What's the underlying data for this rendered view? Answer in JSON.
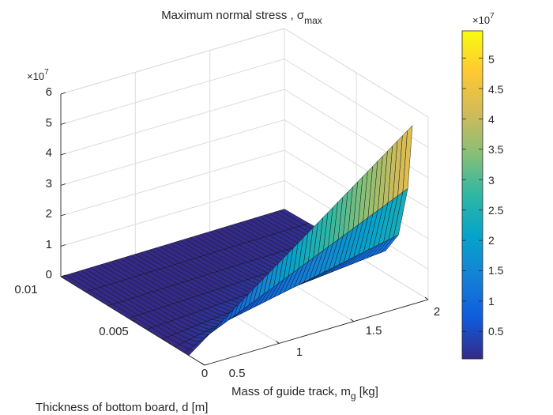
{
  "chart_data": {
    "type": "surface",
    "title_main": "Maximum normal stress , σ",
    "title_sub": "max",
    "xlabel_main": "Mass of guide track, m",
    "xlabel_sub": "g",
    "xlabel_tail": " [kg]",
    "ylabel": "Thickness of bottom board, d [m]",
    "z_exponent_base": "×10",
    "z_exponent_power": "7",
    "xlim": [
      0.5,
      2
    ],
    "ylim": [
      0,
      0.01
    ],
    "zlim": [
      0,
      6
    ],
    "zlim_units": "×10^7",
    "x_ticks": [
      "0.5",
      "1",
      "1.5",
      "2"
    ],
    "y_ticks": [
      "0",
      "0.005",
      "0.01"
    ],
    "z_ticks": [
      "0",
      "1",
      "2",
      "3",
      "4",
      "5",
      "6"
    ],
    "colorbar": {
      "colormap": "parula",
      "limits": [
        0.05,
        5.45
      ],
      "ticks": [
        "0.5",
        "1",
        "1.5",
        "2",
        "2.5",
        "3",
        "3.5",
        "4",
        "4.5",
        "5"
      ],
      "exponent_base": "×10",
      "exponent_power": "7"
    },
    "surface_model": "z = 5.4e7 * (x - 0.5) / 1.5 * (d_min / d)^2, peak 5.4e7 at x = 2, d = 0.0011",
    "surface_grid": {
      "x_lines": 45,
      "d_lines": 8,
      "d_min": 0.0011,
      "d_max": 0.01
    }
  }
}
